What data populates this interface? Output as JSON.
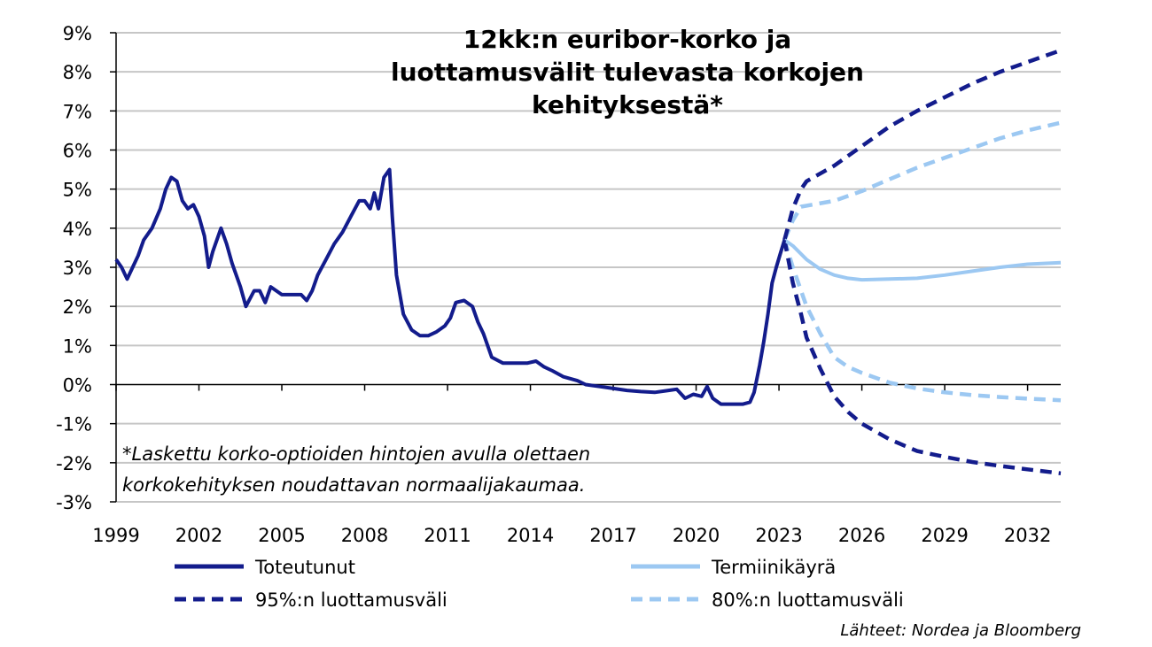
{
  "chart_data": {
    "type": "line",
    "title_lines": [
      "12kk:n euribor-korko ja",
      "luottamusvälit tulevasta korkojen",
      "kehityksestä*"
    ],
    "note_lines": [
      "*Laskettu korko-optioiden hintojen avulla olettaen",
      "korkokehityksen noudattavan normaalijakaumaa."
    ],
    "source": "Lähteet: Nordea ja Bloomberg",
    "xlim": [
      1999,
      2033.2
    ],
    "ylim": [
      -3,
      9
    ],
    "x_ticks": [
      1999,
      2002,
      2005,
      2008,
      2011,
      2014,
      2017,
      2020,
      2023,
      2026,
      2029,
      2032
    ],
    "x_tick_labels": [
      "1999",
      "2002",
      "2005",
      "2008",
      "2011",
      "2014",
      "2017",
      "2020",
      "2023",
      "2026",
      "2029",
      "2032"
    ],
    "y_ticks": [
      -3,
      -2,
      -1,
      0,
      1,
      2,
      3,
      4,
      5,
      6,
      7,
      8,
      9
    ],
    "y_tick_labels": [
      "-3%",
      "-2%",
      "-1%",
      "0%",
      "1%",
      "2%",
      "3%",
      "4%",
      "5%",
      "6%",
      "7%",
      "8%",
      "9%"
    ],
    "grid": "horizontal",
    "legend_position": "bottom",
    "colors": {
      "dark": "#131c8c",
      "light": "#9cc8f2"
    },
    "series": [
      {
        "name": "Toteutunut",
        "style": "solid",
        "color": "#131c8c",
        "points": [
          [
            1999.0,
            3.2
          ],
          [
            1999.2,
            3.0
          ],
          [
            1999.4,
            2.7
          ],
          [
            1999.6,
            3.0
          ],
          [
            1999.8,
            3.3
          ],
          [
            2000.0,
            3.7
          ],
          [
            2000.3,
            4.0
          ],
          [
            2000.6,
            4.5
          ],
          [
            2000.8,
            5.0
          ],
          [
            2001.0,
            5.3
          ],
          [
            2001.2,
            5.2
          ],
          [
            2001.4,
            4.7
          ],
          [
            2001.6,
            4.5
          ],
          [
            2001.8,
            4.6
          ],
          [
            2002.0,
            4.3
          ],
          [
            2002.2,
            3.8
          ],
          [
            2002.35,
            3.0
          ],
          [
            2002.5,
            3.4
          ],
          [
            2002.8,
            4.0
          ],
          [
            2003.0,
            3.6
          ],
          [
            2003.2,
            3.1
          ],
          [
            2003.5,
            2.5
          ],
          [
            2003.7,
            2.0
          ],
          [
            2004.0,
            2.4
          ],
          [
            2004.2,
            2.4
          ],
          [
            2004.4,
            2.1
          ],
          [
            2004.6,
            2.5
          ],
          [
            2005.0,
            2.3
          ],
          [
            2005.4,
            2.3
          ],
          [
            2005.7,
            2.3
          ],
          [
            2005.9,
            2.15
          ],
          [
            2006.1,
            2.4
          ],
          [
            2006.3,
            2.8
          ],
          [
            2006.6,
            3.2
          ],
          [
            2006.9,
            3.6
          ],
          [
            2007.2,
            3.9
          ],
          [
            2007.5,
            4.3
          ],
          [
            2007.8,
            4.7
          ],
          [
            2008.0,
            4.7
          ],
          [
            2008.2,
            4.5
          ],
          [
            2008.35,
            4.9
          ],
          [
            2008.5,
            4.5
          ],
          [
            2008.7,
            5.3
          ],
          [
            2008.9,
            5.5
          ],
          [
            2009.0,
            4.3
          ],
          [
            2009.15,
            2.8
          ],
          [
            2009.4,
            1.8
          ],
          [
            2009.7,
            1.4
          ],
          [
            2010.0,
            1.25
          ],
          [
            2010.3,
            1.25
          ],
          [
            2010.6,
            1.35
          ],
          [
            2010.9,
            1.5
          ],
          [
            2011.1,
            1.7
          ],
          [
            2011.3,
            2.1
          ],
          [
            2011.6,
            2.15
          ],
          [
            2011.9,
            2.0
          ],
          [
            2012.1,
            1.6
          ],
          [
            2012.3,
            1.3
          ],
          [
            2012.6,
            0.7
          ],
          [
            2013.0,
            0.55
          ],
          [
            2013.5,
            0.55
          ],
          [
            2013.9,
            0.55
          ],
          [
            2014.2,
            0.6
          ],
          [
            2014.5,
            0.45
          ],
          [
            2014.8,
            0.35
          ],
          [
            2015.2,
            0.2
          ],
          [
            2015.7,
            0.1
          ],
          [
            2016.0,
            0.0
          ],
          [
            2016.5,
            -0.05
          ],
          [
            2017.0,
            -0.1
          ],
          [
            2017.5,
            -0.15
          ],
          [
            2018.0,
            -0.18
          ],
          [
            2018.5,
            -0.2
          ],
          [
            2019.0,
            -0.15
          ],
          [
            2019.3,
            -0.12
          ],
          [
            2019.6,
            -0.35
          ],
          [
            2019.9,
            -0.25
          ],
          [
            2020.2,
            -0.3
          ],
          [
            2020.4,
            -0.05
          ],
          [
            2020.6,
            -0.35
          ],
          [
            2020.9,
            -0.5
          ],
          [
            2021.3,
            -0.5
          ],
          [
            2021.7,
            -0.5
          ],
          [
            2021.95,
            -0.45
          ],
          [
            2022.1,
            -0.2
          ],
          [
            2022.3,
            0.5
          ],
          [
            2022.45,
            1.1
          ],
          [
            2022.6,
            1.8
          ],
          [
            2022.75,
            2.6
          ],
          [
            2022.9,
            3.0
          ],
          [
            2023.05,
            3.35
          ],
          [
            2023.2,
            3.7
          ]
        ]
      },
      {
        "name": "Termiinikäyrä",
        "style": "solid",
        "color": "#9cc8f2",
        "points": [
          [
            2023.2,
            3.7
          ],
          [
            2023.5,
            3.55
          ],
          [
            2024.0,
            3.2
          ],
          [
            2024.5,
            2.95
          ],
          [
            2025.0,
            2.8
          ],
          [
            2025.5,
            2.72
          ],
          [
            2026.0,
            2.68
          ],
          [
            2027.0,
            2.7
          ],
          [
            2028.0,
            2.72
          ],
          [
            2029.0,
            2.8
          ],
          [
            2030.0,
            2.9
          ],
          [
            2031.0,
            3.0
          ],
          [
            2032.0,
            3.08
          ],
          [
            2033.2,
            3.12
          ]
        ]
      },
      {
        "name": "95%:n luottamusväli",
        "style": "dashed",
        "color": "#131c8c",
        "upper": [
          [
            2023.2,
            3.7
          ],
          [
            2023.5,
            4.5
          ],
          [
            2023.8,
            5.0
          ],
          [
            2024.0,
            5.2
          ],
          [
            2025.0,
            5.6
          ],
          [
            2026.0,
            6.1
          ],
          [
            2027.0,
            6.6
          ],
          [
            2028.0,
            7.0
          ],
          [
            2029.0,
            7.35
          ],
          [
            2030.0,
            7.7
          ],
          [
            2031.0,
            8.0
          ],
          [
            2032.0,
            8.25
          ],
          [
            2033.2,
            8.55
          ]
        ],
        "lower": [
          [
            2023.2,
            3.7
          ],
          [
            2023.5,
            2.6
          ],
          [
            2023.8,
            1.8
          ],
          [
            2024.0,
            1.2
          ],
          [
            2024.5,
            0.4
          ],
          [
            2025.0,
            -0.3
          ],
          [
            2025.5,
            -0.7
          ],
          [
            2026.0,
            -1.0
          ],
          [
            2027.0,
            -1.4
          ],
          [
            2028.0,
            -1.7
          ],
          [
            2029.0,
            -1.85
          ],
          [
            2030.0,
            -1.98
          ],
          [
            2031.0,
            -2.08
          ],
          [
            2032.0,
            -2.17
          ],
          [
            2033.2,
            -2.27
          ]
        ]
      },
      {
        "name": "80%:n luottamusväli",
        "style": "dashed",
        "color": "#9cc8f2",
        "upper": [
          [
            2023.2,
            3.7
          ],
          [
            2023.5,
            4.2
          ],
          [
            2023.8,
            4.55
          ],
          [
            2024.2,
            4.6
          ],
          [
            2025.0,
            4.7
          ],
          [
            2026.0,
            4.95
          ],
          [
            2027.0,
            5.25
          ],
          [
            2028.0,
            5.55
          ],
          [
            2029.0,
            5.8
          ],
          [
            2030.0,
            6.05
          ],
          [
            2031.0,
            6.3
          ],
          [
            2032.0,
            6.5
          ],
          [
            2033.2,
            6.7
          ]
        ],
        "lower": [
          [
            2023.2,
            3.7
          ],
          [
            2023.5,
            3.0
          ],
          [
            2024.0,
            2.0
          ],
          [
            2024.5,
            1.3
          ],
          [
            2025.0,
            0.7
          ],
          [
            2025.5,
            0.45
          ],
          [
            2026.0,
            0.3
          ],
          [
            2027.0,
            0.05
          ],
          [
            2028.0,
            -0.1
          ],
          [
            2029.0,
            -0.2
          ],
          [
            2030.0,
            -0.27
          ],
          [
            2031.0,
            -0.32
          ],
          [
            2032.0,
            -0.36
          ],
          [
            2033.2,
            -0.4
          ]
        ]
      }
    ]
  }
}
